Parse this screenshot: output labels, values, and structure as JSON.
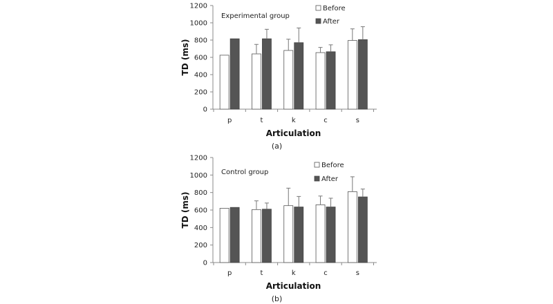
{
  "chart_data": [
    {
      "type": "bar",
      "caption": "(a)",
      "annotation": "Experimental group",
      "xlabel": "Articulation",
      "ylabel": "TD (ms)",
      "ylim": [
        0,
        1200
      ],
      "yticks": [
        0,
        200,
        400,
        600,
        800,
        1000,
        1200
      ],
      "categories": [
        "p",
        "t",
        "k",
        "c",
        "s"
      ],
      "legend_position": "top-right",
      "series": [
        {
          "name": "Before",
          "fill": "#ffffff",
          "stroke": "#555555",
          "values": [
            625,
            640,
            680,
            655,
            795
          ],
          "errors": [
            0,
            110,
            130,
            60,
            135
          ]
        },
        {
          "name": "After",
          "fill": "#555555",
          "stroke": "#444444",
          "values": [
            815,
            815,
            770,
            665,
            805
          ],
          "errors": [
            0,
            110,
            170,
            80,
            150
          ]
        }
      ]
    },
    {
      "type": "bar",
      "caption": "(b)",
      "annotation": "Control group",
      "xlabel": "Articulation",
      "ylabel": "TD (ms)",
      "ylim": [
        0,
        1200
      ],
      "yticks": [
        0,
        200,
        400,
        600,
        800,
        1000,
        1200
      ],
      "categories": [
        "p",
        "t",
        "k",
        "c",
        "s"
      ],
      "legend_position": "top-right",
      "series": [
        {
          "name": "Before",
          "fill": "#ffffff",
          "stroke": "#555555",
          "values": [
            620,
            605,
            650,
            660,
            810
          ],
          "errors": [
            0,
            100,
            200,
            100,
            170
          ]
        },
        {
          "name": "After",
          "fill": "#555555",
          "stroke": "#444444",
          "values": [
            630,
            610,
            635,
            635,
            750
          ],
          "errors": [
            0,
            70,
            120,
            100,
            90
          ]
        }
      ]
    }
  ]
}
